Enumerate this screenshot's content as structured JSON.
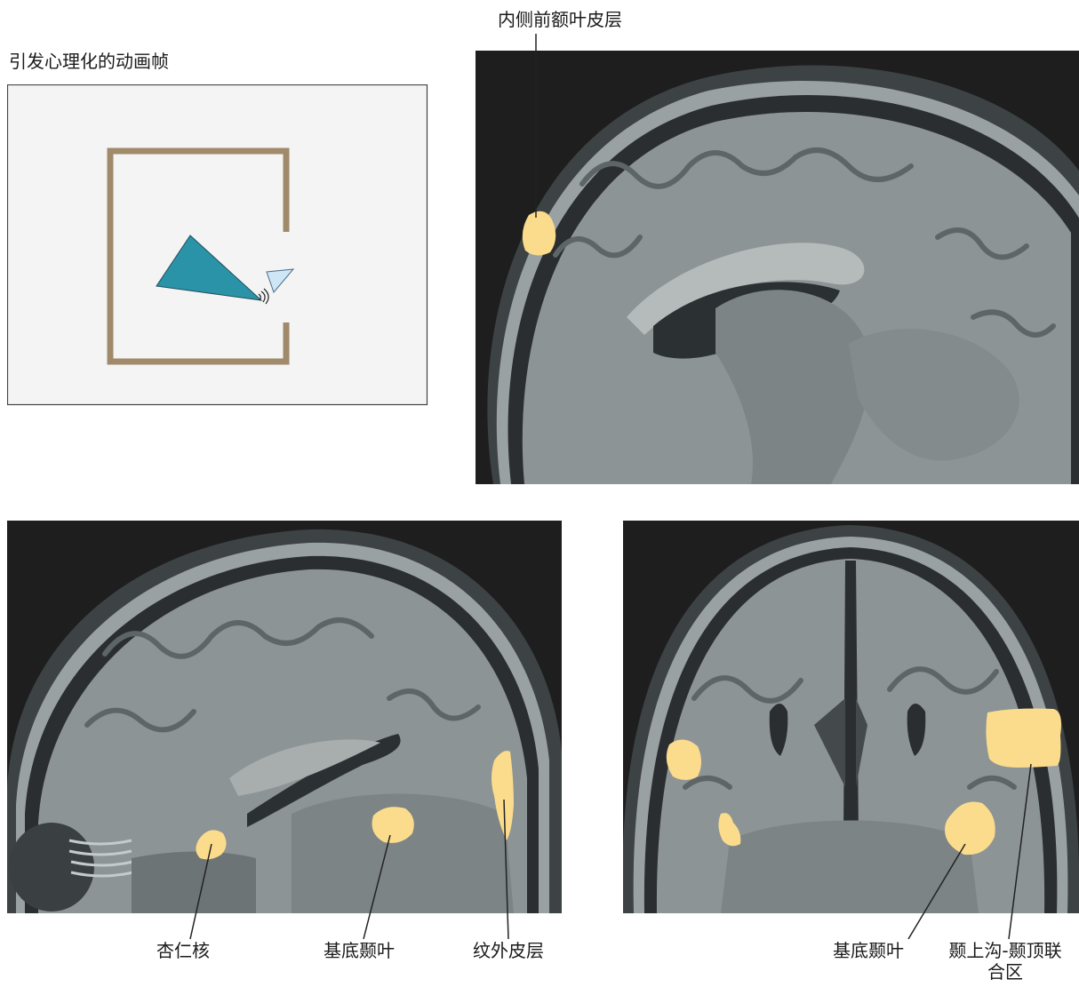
{
  "animation": {
    "title": "引发心理化的动画帧",
    "colors": {
      "frame_border": "#444444",
      "frame_bg": "#f4f4f4",
      "box": "#a08a6a",
      "big_triangle": "#2b93a7",
      "small_triangle": "#cfe6f6"
    }
  },
  "labels": {
    "mpfc": "内侧前额叶皮层",
    "amygdala": "杏仁核",
    "basal_temporal_left": "基底颞叶",
    "extrastriate": "纹外皮层",
    "basal_temporal_right": "基底颞叶",
    "sts_tpj_line1": "颞上沟-颞顶联",
    "sts_tpj_line2": "合区"
  },
  "colors": {
    "activation": "#fbdc8c",
    "mri_bg": "#1e1e1e",
    "mri_tissue": "#8d9496",
    "leader_line": "#222222"
  },
  "icons": [
    "sound-wave-icon"
  ]
}
